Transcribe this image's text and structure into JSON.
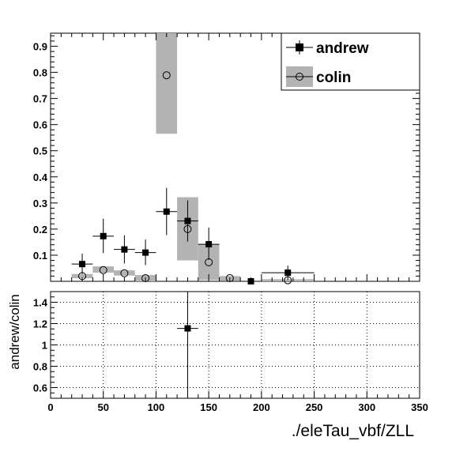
{
  "chart_data": [
    {
      "type": "scatter",
      "xlim": [
        0,
        350
      ],
      "ylim": [
        0,
        0.95
      ],
      "yticks": [
        0.1,
        0.2,
        0.3,
        0.4,
        0.5,
        0.6,
        0.7,
        0.8,
        0.9
      ],
      "ytick_labels": [
        "0.1",
        "0.2",
        "0.3",
        "0.4",
        "0.5",
        "0.6",
        "0.7",
        "0.8",
        "0.9"
      ],
      "legend_position": "top-right",
      "series": [
        {
          "name": "andrew",
          "marker": "filled-square",
          "points": [
            {
              "x": 30,
              "xlo": 20,
              "xhi": 40,
              "y": 0.066,
              "ylo": 0.028,
              "yhi": 0.106
            },
            {
              "x": 50,
              "xlo": 40,
              "xhi": 60,
              "y": 0.173,
              "ylo": 0.108,
              "yhi": 0.24
            },
            {
              "x": 70,
              "xlo": 60,
              "xhi": 80,
              "y": 0.122,
              "ylo": 0.068,
              "yhi": 0.176
            },
            {
              "x": 90,
              "xlo": 80,
              "xhi": 100,
              "y": 0.11,
              "ylo": 0.062,
              "yhi": 0.16
            },
            {
              "x": 110,
              "xlo": 100,
              "xhi": 120,
              "y": 0.267,
              "ylo": 0.177,
              "yhi": 0.358
            },
            {
              "x": 130,
              "xlo": 120,
              "xhi": 140,
              "y": 0.231,
              "ylo": 0.152,
              "yhi": 0.31
            },
            {
              "x": 150,
              "xlo": 140,
              "xhi": 160,
              "y": 0.142,
              "ylo": 0.082,
              "yhi": 0.206
            },
            {
              "x": 190,
              "xlo": 180,
              "xhi": 200,
              "y": 0.0,
              "ylo": 0.0,
              "yhi": 0.0
            },
            {
              "x": 225,
              "xlo": 200,
              "xhi": 250,
              "y": 0.033,
              "ylo": 0.005,
              "yhi": 0.06
            }
          ]
        },
        {
          "name": "colin",
          "marker": "open-circle",
          "points": [
            {
              "x": 30,
              "y": 0.02,
              "band_lo": 0.012,
              "band_hi": 0.028,
              "xlo": 20,
              "xhi": 40
            },
            {
              "x": 50,
              "y": 0.043,
              "band_lo": 0.033,
              "band_hi": 0.057,
              "xlo": 40,
              "xhi": 60
            },
            {
              "x": 70,
              "y": 0.031,
              "band_lo": 0.022,
              "band_hi": 0.042,
              "xlo": 60,
              "xhi": 80
            },
            {
              "x": 90,
              "y": 0.012,
              "band_lo": 0.0,
              "band_hi": 0.024,
              "xlo": 80,
              "xhi": 100
            },
            {
              "x": 110,
              "y": 0.789,
              "band_lo": 0.565,
              "band_hi": 0.95,
              "xlo": 100,
              "xhi": 120
            },
            {
              "x": 130,
              "y": 0.2,
              "band_lo": 0.08,
              "band_hi": 0.322,
              "xlo": 120,
              "xhi": 140
            },
            {
              "x": 150,
              "y": 0.073,
              "band_lo": 0.005,
              "band_hi": 0.142,
              "xlo": 140,
              "xhi": 160
            },
            {
              "x": 170,
              "y": 0.012,
              "band_lo": 0.003,
              "band_hi": 0.02,
              "xlo": 160,
              "xhi": 180
            },
            {
              "x": 225,
              "y": 0.004,
              "band_lo": 0.0,
              "band_hi": 0.008,
              "xlo": 200,
              "xhi": 250
            }
          ]
        }
      ]
    },
    {
      "type": "scatter",
      "xlim": [
        0,
        350
      ],
      "ylim": [
        0.5,
        1.5
      ],
      "ylabel": "andrew/colin",
      "xlabel": "./eleTau_vbf/ZLL",
      "grid": true,
      "yticks": [
        0.6,
        0.8,
        1.0,
        1.2,
        1.4
      ],
      "ytick_labels": [
        "0.6",
        "0.8",
        "1",
        "1.2",
        "1.4"
      ],
      "xticks": [
        0,
        50,
        100,
        150,
        200,
        250,
        300,
        350
      ],
      "xtick_labels": [
        "0",
        "50",
        "100",
        "150",
        "200",
        "250",
        "300",
        "350"
      ],
      "series": [
        {
          "points": [
            {
              "x": 130,
              "xlo": 120,
              "xhi": 140,
              "y": 1.155,
              "ylo": 0.5,
              "yhi": 1.5
            }
          ]
        }
      ]
    }
  ]
}
